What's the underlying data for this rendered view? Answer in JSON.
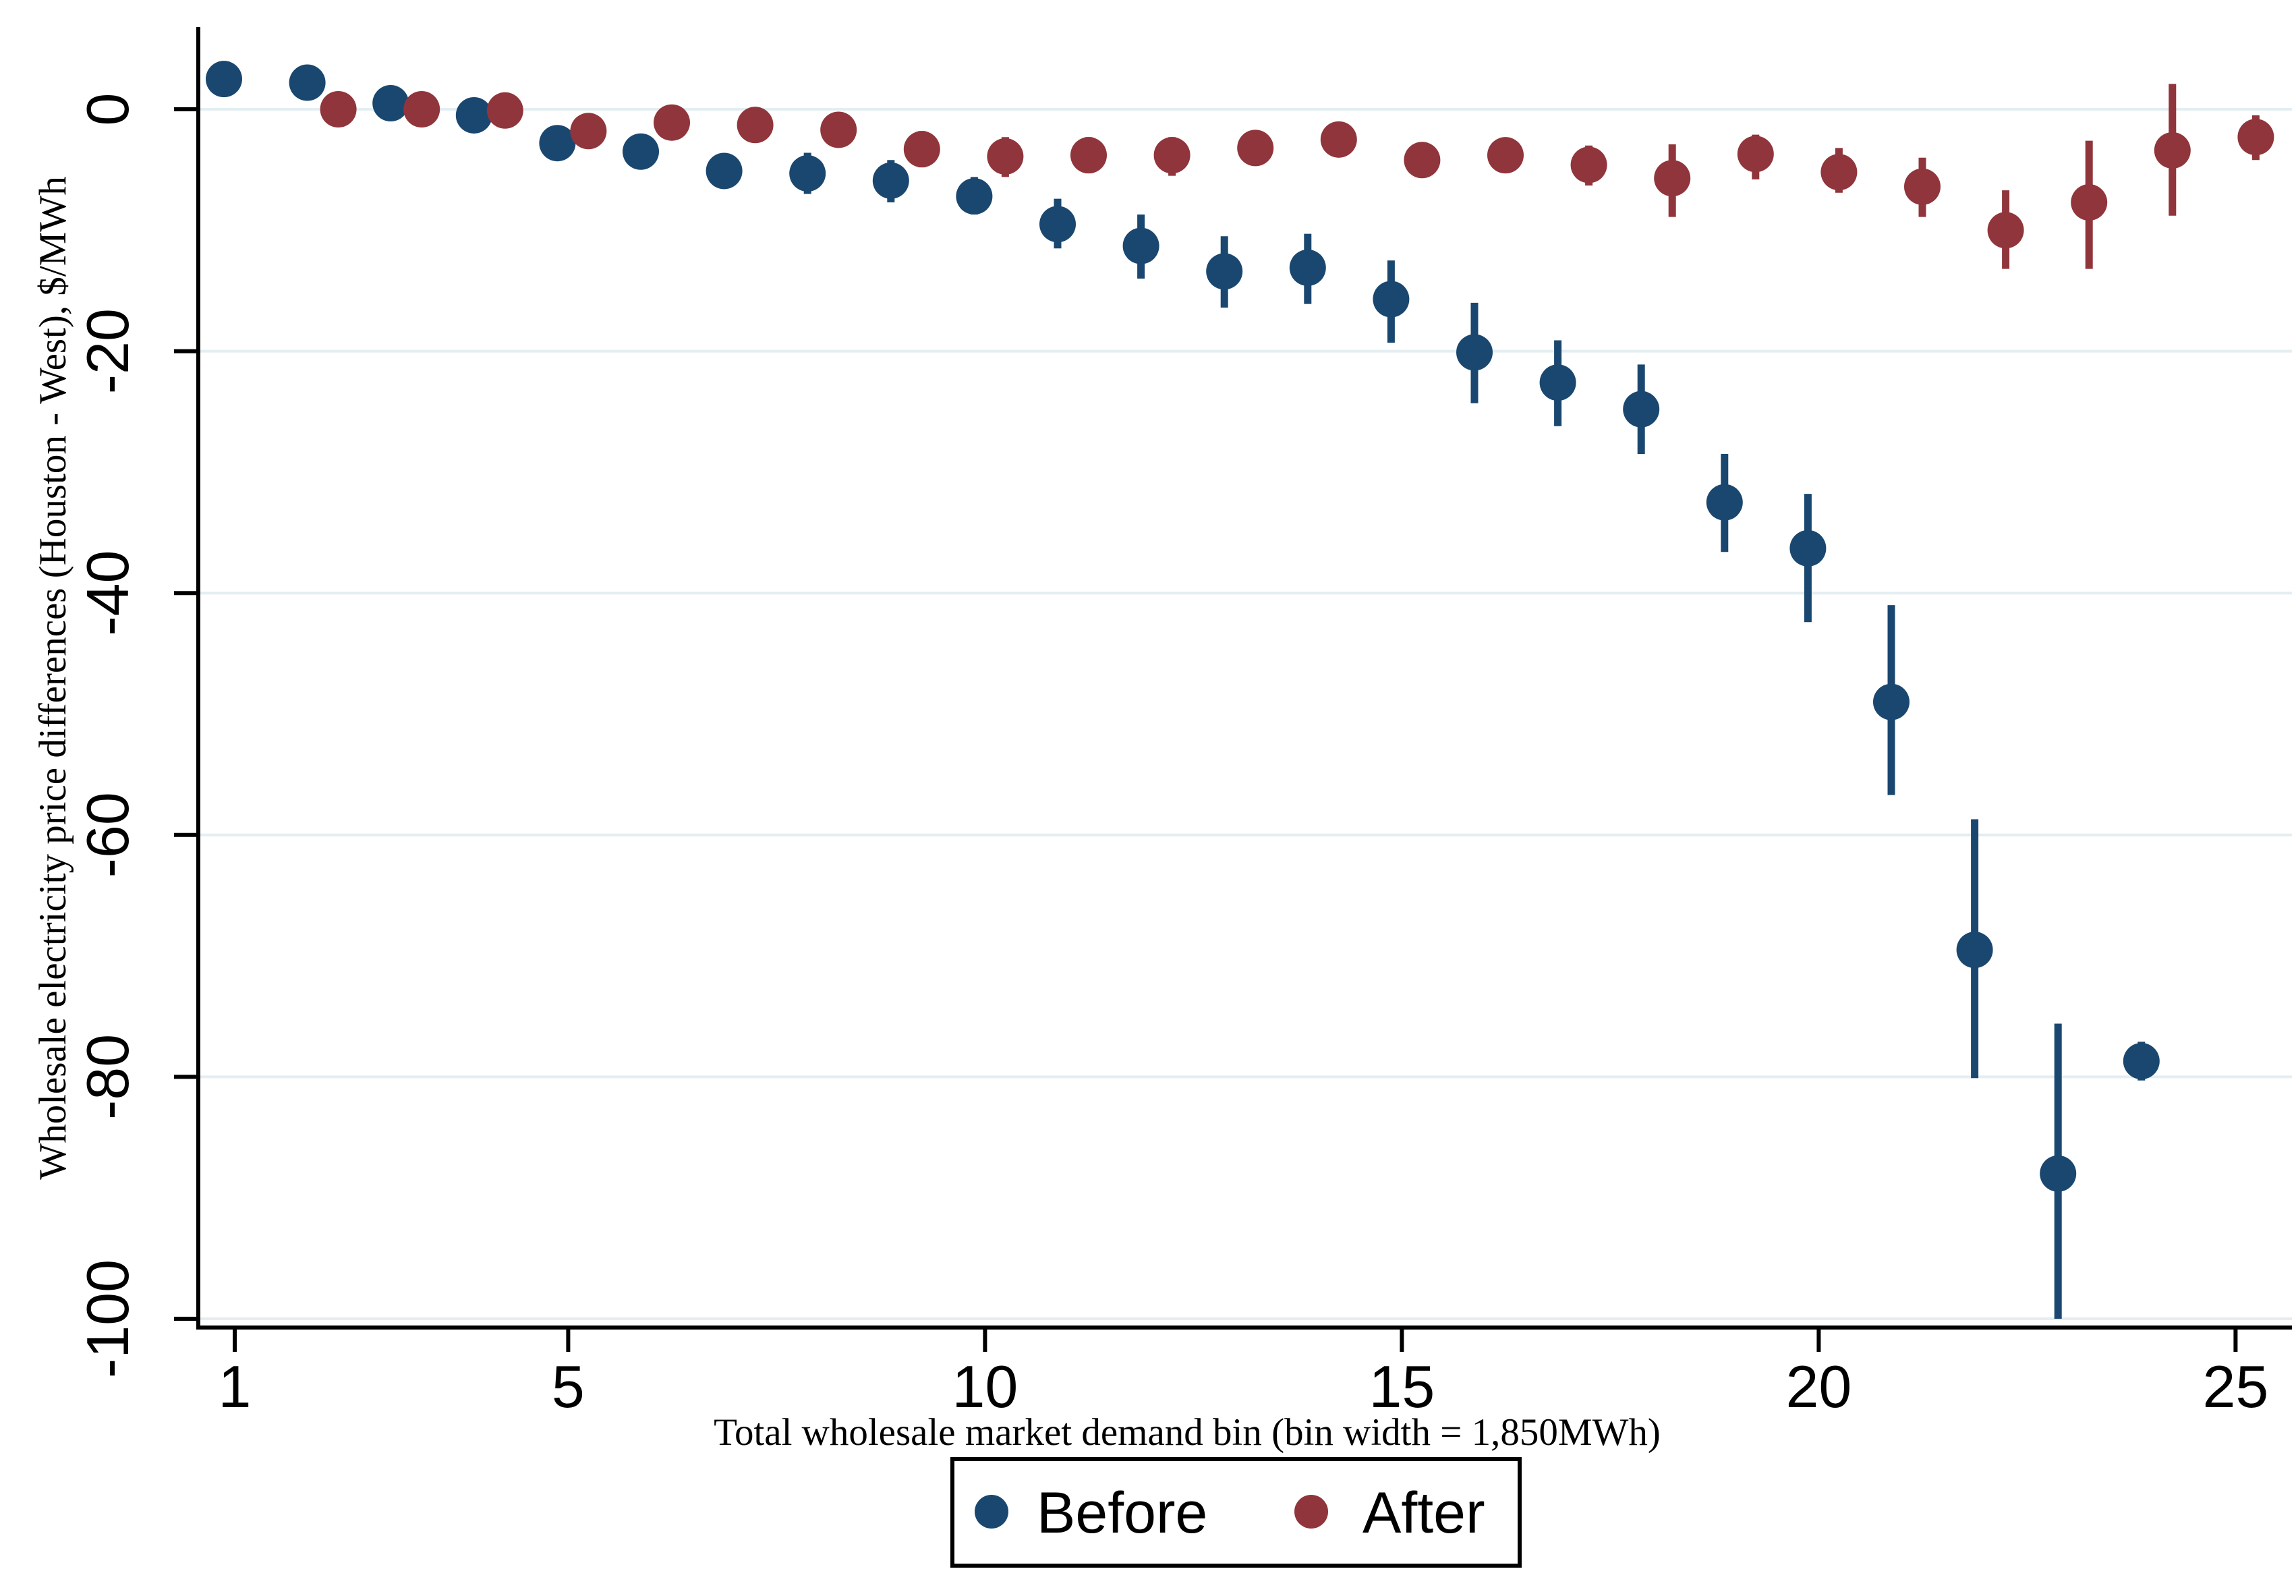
{
  "chart_data": {
    "type": "scatter",
    "title": "",
    "xlabel": "Total wholesale market demand bin (bin width = 1,850MWh)",
    "ylabel": "Wholesale electricity price differences (Houston - West), $/MWh",
    "x_ticks": [
      1,
      5,
      10,
      15,
      20,
      25
    ],
    "y_ticks": [
      0,
      -20,
      -40,
      -60,
      -80,
      -100
    ],
    "xlim": [
      0.6,
      25.7
    ],
    "ylim": [
      7,
      -101
    ],
    "grid": "horizontal-only",
    "legend_position": "bottom-center",
    "series": [
      {
        "name": "Before",
        "color": "#1A476F",
        "marker": "circle",
        "points": [
          {
            "x": 1,
            "y": 2.5,
            "ci": [
              1.8,
              3.2
            ]
          },
          {
            "x": 2,
            "y": 2.2,
            "ci": [
              1.5,
              2.9
            ]
          },
          {
            "x": 3,
            "y": 0.5,
            "ci": [
              -0.2,
              1.2
            ]
          },
          {
            "x": 4,
            "y": -0.5,
            "ci": [
              -1.3,
              0.3
            ]
          },
          {
            "x": 5,
            "y": -2.8,
            "ci": [
              -3.6,
              -2.0
            ]
          },
          {
            "x": 6,
            "y": -3.5,
            "ci": [
              -4.4,
              -2.6
            ]
          },
          {
            "x": 7,
            "y": -5.1,
            "ci": [
              -6.3,
              -3.9
            ]
          },
          {
            "x": 8,
            "y": -5.3,
            "ci": [
              -7.0,
              -3.6
            ]
          },
          {
            "x": 9,
            "y": -5.9,
            "ci": [
              -7.7,
              -4.2
            ]
          },
          {
            "x": 10,
            "y": -7.2,
            "ci": [
              -8.7,
              -5.6
            ]
          },
          {
            "x": 11,
            "y": -9.5,
            "ci": [
              -11.5,
              -7.4
            ]
          },
          {
            "x": 12,
            "y": -11.3,
            "ci": [
              -14.0,
              -8.7
            ]
          },
          {
            "x": 13,
            "y": -13.4,
            "ci": [
              -16.4,
              -10.5
            ]
          },
          {
            "x": 14,
            "y": -13.1,
            "ci": [
              -16.1,
              -10.3
            ]
          },
          {
            "x": 15,
            "y": -15.7,
            "ci": [
              -19.3,
              -12.5
            ]
          },
          {
            "x": 16,
            "y": -20.1,
            "ci": [
              -24.3,
              -16.0
            ]
          },
          {
            "x": 17,
            "y": -22.6,
            "ci": [
              -26.2,
              -19.1
            ]
          },
          {
            "x": 18,
            "y": -24.8,
            "ci": [
              -28.5,
              -21.1
            ]
          },
          {
            "x": 19,
            "y": -32.5,
            "ci": [
              -36.6,
              -28.5
            ]
          },
          {
            "x": 20,
            "y": -36.3,
            "ci": [
              -42.4,
              -31.8
            ]
          },
          {
            "x": 21,
            "y": -49.0,
            "ci": [
              -56.7,
              -41.0
            ]
          },
          {
            "x": 22,
            "y": -69.5,
            "ci": [
              -80.1,
              -58.7
            ]
          },
          {
            "x": 23,
            "y": -88.0,
            "ci": [
              -100.0,
              -75.6
            ]
          },
          {
            "x": 24,
            "y": -78.7,
            "ci": [
              -80.3,
              -77.1
            ]
          }
        ]
      },
      {
        "name": "After",
        "color": "#90353B",
        "marker": "circle",
        "points": [
          {
            "x": 2,
            "y": 0.0,
            "ci": [
              -0.5,
              0.5
            ]
          },
          {
            "x": 3,
            "y": 0.0,
            "ci": [
              -0.5,
              0.5
            ]
          },
          {
            "x": 4,
            "y": -0.1,
            "ci": [
              -0.7,
              0.5
            ]
          },
          {
            "x": 5,
            "y": -1.8,
            "ci": [
              -2.5,
              -1.1
            ]
          },
          {
            "x": 6,
            "y": -1.1,
            "ci": [
              -1.8,
              -0.4
            ]
          },
          {
            "x": 7,
            "y": -1.3,
            "ci": [
              -2.1,
              -0.5
            ]
          },
          {
            "x": 8,
            "y": -1.7,
            "ci": [
              -2.6,
              -0.8
            ]
          },
          {
            "x": 9,
            "y": -3.3,
            "ci": [
              -4.8,
              -1.8
            ]
          },
          {
            "x": 10,
            "y": -3.9,
            "ci": [
              -5.6,
              -2.3
            ]
          },
          {
            "x": 11,
            "y": -3.8,
            "ci": [
              -5.3,
              -2.3
            ]
          },
          {
            "x": 12,
            "y": -3.8,
            "ci": [
              -5.5,
              -2.3
            ]
          },
          {
            "x": 13,
            "y": -3.2,
            "ci": [
              -4.5,
              -2.0
            ]
          },
          {
            "x": 14,
            "y": -2.5,
            "ci": [
              -3.8,
              -1.2
            ]
          },
          {
            "x": 15,
            "y": -4.2,
            "ci": [
              -5.6,
              -2.8
            ]
          },
          {
            "x": 16,
            "y": -3.8,
            "ci": [
              -5.2,
              -2.5
            ]
          },
          {
            "x": 17,
            "y": -4.6,
            "ci": [
              -6.3,
              -3.0
            ]
          },
          {
            "x": 18,
            "y": -5.7,
            "ci": [
              -8.9,
              -2.9
            ]
          },
          {
            "x": 19,
            "y": -3.7,
            "ci": [
              -5.8,
              -2.1
            ]
          },
          {
            "x": 20,
            "y": -5.2,
            "ci": [
              -6.9,
              -3.2
            ]
          },
          {
            "x": 21,
            "y": -6.4,
            "ci": [
              -8.9,
              -4.0
            ]
          },
          {
            "x": 22,
            "y": -10.0,
            "ci": [
              -13.2,
              -6.7
            ]
          },
          {
            "x": 23,
            "y": -7.7,
            "ci": [
              -13.2,
              -2.6
            ]
          },
          {
            "x": 24,
            "y": -3.4,
            "ci": [
              -8.8,
              2.1
            ]
          },
          {
            "x": 25,
            "y": -2.3,
            "ci": [
              -4.2,
              -0.5
            ]
          }
        ]
      }
    ]
  },
  "legend": {
    "items": [
      {
        "label": "Before",
        "color": "#1A476F"
      },
      {
        "label": "After",
        "color": "#90353B"
      }
    ]
  },
  "colors": {
    "background": "#FFFFFF",
    "axis": "#000000",
    "gridline": "#E4EEF2",
    "before": "#1A476F",
    "after": "#90353B",
    "text": "#000000"
  }
}
